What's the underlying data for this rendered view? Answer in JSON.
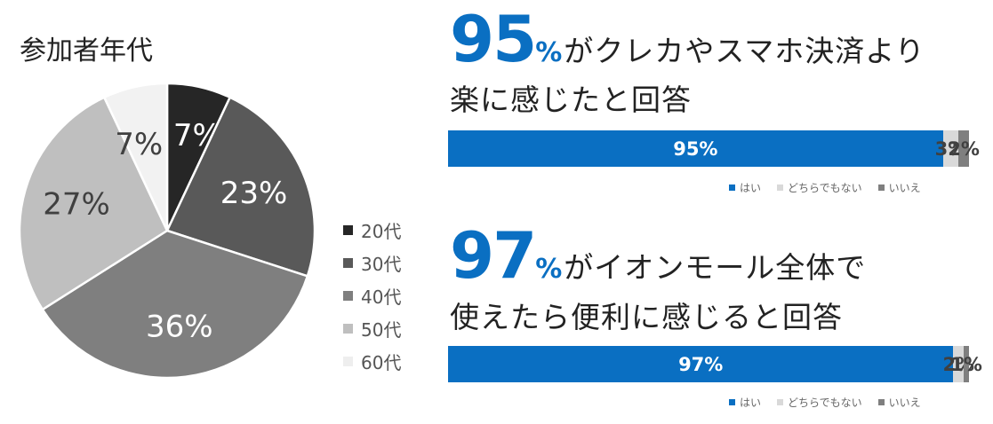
{
  "chart_data": [
    {
      "type": "pie",
      "title": "参加者年代",
      "slices": [
        {
          "label": "20代",
          "value": 7,
          "display": "7%",
          "color": "#262626"
        },
        {
          "label": "30代",
          "value": 23,
          "display": "23%",
          "color": "#595959"
        },
        {
          "label": "40代",
          "value": 36,
          "display": "36%",
          "color": "#7f7f7f"
        },
        {
          "label": "50代",
          "value": 27,
          "display": "27%",
          "color": "#bfbfbf"
        },
        {
          "label": "60代",
          "value": 7,
          "display": "7%",
          "color": "#f2f2f2"
        }
      ],
      "legend_position": "right"
    },
    {
      "type": "bar",
      "orientation": "horizontal-stacked",
      "headline_number": "95",
      "headline_percent": "%",
      "headline_text": "がクレカやスマホ決済より",
      "headline_text2": "楽に感じたと回答",
      "series": [
        {
          "name": "はい",
          "value": 95,
          "display": "95%",
          "color": "#0a6fc2"
        },
        {
          "name": "どちらでもない",
          "value": 3,
          "display": "3%",
          "color": "#d9d9d9"
        },
        {
          "name": "いいえ",
          "value": 2,
          "display": "2%",
          "color": "#7f7f7f"
        }
      ],
      "legend_position": "bottom-right"
    },
    {
      "type": "bar",
      "orientation": "horizontal-stacked",
      "headline_number": "97",
      "headline_percent": "%",
      "headline_text": "がイオンモール全体で",
      "headline_text2": "使えたら便利に感じると回答",
      "series": [
        {
          "name": "はい",
          "value": 97,
          "display": "97%",
          "color": "#0a6fc2"
        },
        {
          "name": "どちらでもない",
          "value": 2,
          "display": "2%",
          "color": "#d9d9d9"
        },
        {
          "name": "いいえ",
          "value": 1,
          "display": "1%",
          "color": "#7f7f7f"
        }
      ],
      "legend_position": "bottom-right"
    }
  ]
}
